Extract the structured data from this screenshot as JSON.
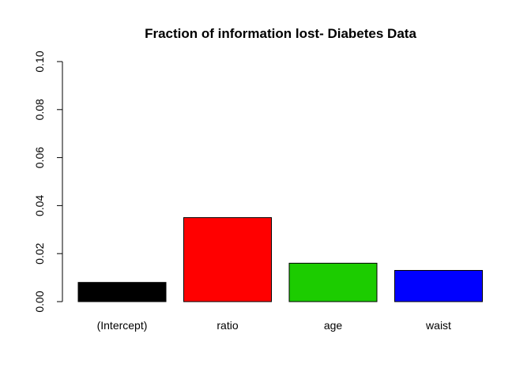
{
  "chart_data": {
    "type": "bar",
    "title": "Fraction of information lost- Diabetes Data",
    "xlabel": "",
    "ylabel": "",
    "categories": [
      "(Intercept)",
      "ratio",
      "age",
      "waist"
    ],
    "values": [
      0.008,
      0.035,
      0.016,
      0.013
    ],
    "colors": [
      "#000000",
      "#ff0000",
      "#1ccc00",
      "#0000ff"
    ],
    "ylim": [
      0,
      0.1
    ],
    "yticks": [
      0.0,
      0.02,
      0.04,
      0.06,
      0.08,
      0.1
    ],
    "ytick_labels": [
      "0.00",
      "0.02",
      "0.04",
      "0.06",
      "0.08",
      "0.10"
    ],
    "grid": false,
    "legend": "none"
  }
}
